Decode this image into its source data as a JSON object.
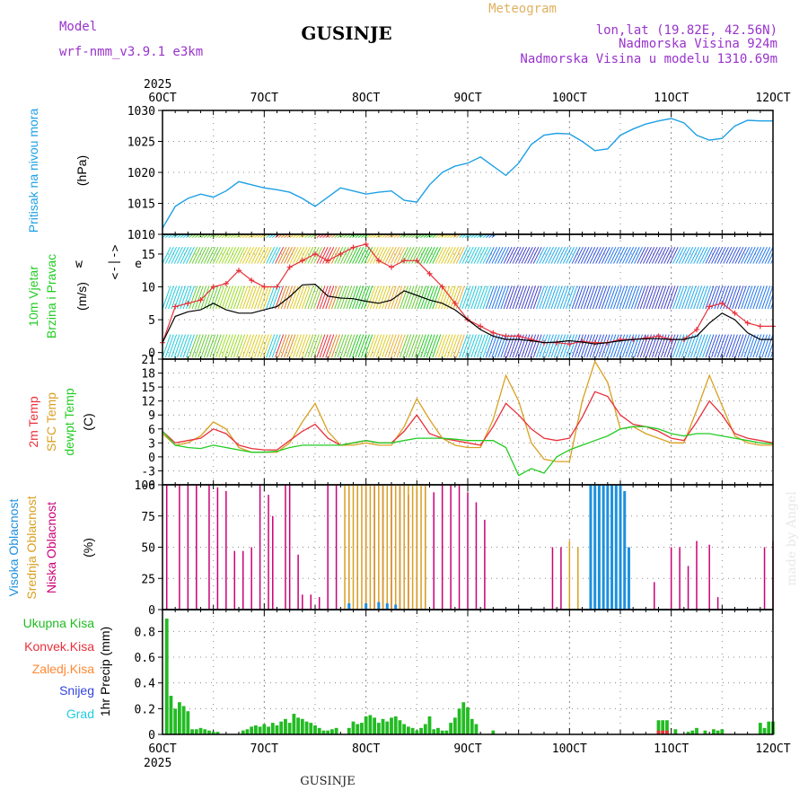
{
  "header": {
    "model_label": "Model",
    "model_name": "wrf-nmm_v3.9.1 e3km",
    "title": "GUSINJE",
    "subtitle": "Meteogram",
    "lonlat": "lon,lat (19.82E, 42.56N)",
    "elevation": "Nadmorska Visina 924m",
    "model_elevation": "Nadmorska Visina u modelu 1310.69m",
    "credit": "made by Angel",
    "footer": "GUSINJE"
  },
  "colors": {
    "pressure": "#1ea0e6",
    "wind_label": "#22cc22",
    "wind_speed": "#000000",
    "gust": "#e8303a",
    "t2m": "#e8303a",
    "sfc": "#d8a020",
    "dewpt": "#22cc22",
    "high_cloud": "#1e90dd",
    "mid_cloud": "#d8a020",
    "low_cloud": "#cc0077",
    "model": "#9933cc",
    "grid": "#888888"
  },
  "time_axis": {
    "year": "2025",
    "labels": [
      "6OCT",
      "7OCT",
      "8OCT",
      "9OCT",
      "10OCT",
      "11OCT",
      "12OCT"
    ]
  },
  "panels": {
    "pressure": {
      "ylabel": "Pritisak na nivou mora",
      "unit": "(hPa)",
      "yticks": [
        "1010",
        "1015",
        "1020",
        "1025",
        "1030"
      ]
    },
    "wind": {
      "ylabel1": "10m Vjetar",
      "ylabel2": "Brzina i Pravac",
      "unit": "(m/s)",
      "yticks": [
        "0",
        "5",
        "10",
        "15"
      ],
      "compass": [
        "w",
        "<-",
        "|",
        "->",
        "e"
      ]
    },
    "temp": {
      "ylabel1": "2m Temp",
      "ylabel2": "SFC Temp",
      "ylabel3": "dewpt Temp",
      "unit": "(C)",
      "yticks": [
        "-6",
        "-3",
        "0",
        "3",
        "6",
        "9",
        "12",
        "15",
        "18",
        "21"
      ]
    },
    "cloud": {
      "ylabel1": "Visoka Oblacnost",
      "ylabel2": "Srednja Oblacnost",
      "ylabel3": "Niska Oblacnost",
      "unit": "(%)",
      "yticks": [
        "0",
        "25",
        "50",
        "75",
        "100"
      ]
    },
    "precip": {
      "legend": [
        "Ukupna Kisa",
        "Konvek.Kisa",
        "Zaledj.Kisa",
        "Snijeg",
        "Grad"
      ],
      "unit": "1hr Precip (mm)",
      "yticks": [
        "0",
        "0.2",
        "0.4",
        "0.6",
        "0.8"
      ]
    }
  },
  "chart_data": [
    {
      "type": "line",
      "title": "Pritisak na nivou mora",
      "ylabel": "hPa",
      "ylim": [
        1010,
        1030
      ],
      "x_hours": [
        0,
        3,
        6,
        9,
        12,
        15,
        18,
        21,
        24,
        27,
        30,
        33,
        36,
        39,
        42,
        45,
        48,
        51,
        54,
        57,
        60,
        63,
        66,
        69,
        72,
        75,
        78,
        81,
        84,
        87,
        90,
        93,
        96,
        99,
        102,
        105,
        108,
        111,
        114,
        117,
        120,
        123,
        126,
        129,
        132,
        135,
        138,
        141,
        144
      ],
      "values": [
        1011,
        1014.5,
        1015.8,
        1016.5,
        1016,
        1017,
        1018.5,
        1018,
        1017.5,
        1017.2,
        1016.8,
        1015.8,
        1014.5,
        1016,
        1017.5,
        1017,
        1016.5,
        1016.8,
        1017,
        1015.5,
        1015.2,
        1018,
        1020,
        1021,
        1021.5,
        1022.5,
        1021,
        1019.5,
        1021.5,
        1024.5,
        1026,
        1026.3,
        1026.2,
        1025,
        1023.5,
        1023.8,
        1026,
        1027,
        1027.8,
        1028.3,
        1028.7,
        1028,
        1026,
        1025.2,
        1025.5,
        1027.5,
        1028.4,
        1028.3,
        1028.3
      ]
    },
    {
      "type": "line",
      "title": "10m Vjetar Brzina i Pravac",
      "ylabel": "m/s",
      "ylim": [
        -1,
        18
      ],
      "x_hours": [
        0,
        3,
        6,
        9,
        12,
        15,
        18,
        21,
        24,
        27,
        30,
        33,
        36,
        39,
        42,
        45,
        48,
        51,
        54,
        57,
        60,
        63,
        66,
        69,
        72,
        75,
        78,
        81,
        84,
        87,
        90,
        93,
        96,
        99,
        102,
        105,
        108,
        111,
        114,
        117,
        120,
        123,
        126,
        129,
        132,
        135,
        138,
        141,
        144
      ],
      "series": [
        {
          "name": "wind_speed",
          "values": [
            1.5,
            5.5,
            6.2,
            6.5,
            7.5,
            6.5,
            6,
            6,
            6.5,
            7,
            8.5,
            10.3,
            10.4,
            8.6,
            8.3,
            8.2,
            7.8,
            7.5,
            8,
            9.4,
            8.7,
            8,
            7.5,
            6.5,
            5,
            3.5,
            2.5,
            2,
            2,
            1.8,
            1.5,
            1.6,
            1.8,
            1.6,
            1.3,
            1.5,
            1.8,
            2,
            2.1,
            2.1,
            2,
            2,
            2.5,
            4.5,
            6,
            5,
            3,
            2,
            2
          ]
        },
        {
          "name": "gust",
          "values": [
            1.5,
            7,
            7.5,
            8,
            10,
            10.5,
            12.5,
            11,
            10,
            10,
            13,
            14,
            15,
            14,
            15,
            16,
            16.5,
            14,
            13,
            14,
            14,
            12,
            10,
            7.5,
            5,
            4,
            3,
            2.5,
            2.5,
            2,
            1.5,
            1.5,
            1.3,
            1.7,
            1.5,
            1.5,
            2,
            2,
            2.2,
            2.5,
            2,
            2,
            3.5,
            7,
            7.5,
            6,
            4.5,
            4,
            4
          ]
        }
      ]
    },
    {
      "type": "line",
      "title": "Temperature",
      "ylabel": "C",
      "ylim": [
        -6,
        21
      ],
      "x_hours": [
        0,
        3,
        6,
        9,
        12,
        15,
        18,
        21,
        24,
        27,
        30,
        33,
        36,
        39,
        42,
        45,
        48,
        51,
        54,
        57,
        60,
        63,
        66,
        69,
        72,
        75,
        78,
        81,
        84,
        87,
        90,
        93,
        96,
        99,
        102,
        105,
        108,
        111,
        114,
        117,
        120,
        123,
        126,
        129,
        132,
        135,
        138,
        141,
        144
      ],
      "series": [
        {
          "name": "2m Temp",
          "values": [
            5.5,
            3,
            3.5,
            4,
            6,
            5,
            2.5,
            1.8,
            1.5,
            1.5,
            3.5,
            5.5,
            7,
            4,
            2.5,
            3,
            3.5,
            3,
            3,
            5.5,
            9,
            5,
            4,
            3.5,
            3,
            2.5,
            6.5,
            11.5,
            9,
            6,
            4,
            3.5,
            4,
            8.5,
            14,
            13,
            9,
            7,
            6.5,
            5.5,
            4,
            3.5,
            7.5,
            12,
            9,
            5,
            4,
            3.5,
            3
          ]
        },
        {
          "name": "SFC Temp",
          "values": [
            5,
            2.5,
            3,
            4.5,
            7.5,
            6,
            2,
            1,
            1,
            1,
            3,
            7.5,
            11.5,
            5.5,
            2.5,
            2.5,
            3,
            2.5,
            2.5,
            6.5,
            12.5,
            8,
            4,
            2.5,
            2,
            2,
            8,
            17.5,
            12,
            3,
            -0.5,
            -1,
            -1,
            12,
            20.5,
            16,
            6,
            6.5,
            5,
            4,
            3,
            3,
            10,
            17.5,
            11,
            4.5,
            3,
            2.5,
            2.5
          ]
        },
        {
          "name": "dewpt Temp",
          "values": [
            5.5,
            2.5,
            2,
            1.8,
            2.5,
            2,
            1.5,
            1,
            1,
            1.2,
            2,
            2.5,
            2.5,
            2.5,
            2.5,
            3,
            3.5,
            3,
            3,
            3.5,
            4,
            4,
            4,
            3.8,
            3.5,
            3.5,
            3.5,
            2,
            -4,
            -2.5,
            -3.5,
            0,
            1.5,
            2.5,
            3.5,
            4.5,
            6,
            6.5,
            6.5,
            6,
            5,
            4.5,
            5,
            5,
            4.5,
            4,
            3.5,
            3,
            2.8
          ]
        }
      ]
    },
    {
      "type": "bar",
      "title": "Oblacnost",
      "ylabel": "%",
      "ylim": [
        0,
        100
      ],
      "series": [
        {
          "name": "Niska Oblacnost",
          "x_hours": [
            1,
            4,
            6,
            8,
            11,
            13,
            15,
            17,
            19,
            21,
            23,
            25,
            26,
            29,
            30,
            32,
            33,
            35,
            37,
            39,
            41,
            44,
            46,
            48,
            50,
            52,
            54,
            56,
            58,
            60,
            62,
            64,
            66,
            68,
            70,
            72,
            74,
            76,
            92,
            94,
            116,
            120,
            122,
            124,
            126,
            129,
            131,
            142,
            144
          ],
          "values": [
            100,
            100,
            100,
            100,
            100,
            98,
            95,
            47,
            47,
            50,
            100,
            92,
            75,
            100,
            100,
            44,
            12,
            12,
            10,
            100,
            100,
            100,
            100,
            100,
            100,
            100,
            100,
            100,
            92,
            96,
            100,
            94,
            100,
            100,
            100,
            94,
            86,
            72,
            50,
            50,
            22,
            50,
            50,
            35,
            55,
            52,
            10,
            50,
            55
          ]
        },
        {
          "name": "Srednja Oblacnost",
          "x_hours": [
            43,
            44,
            45,
            46,
            47,
            48,
            49,
            50,
            51,
            52,
            53,
            54,
            55,
            56,
            57,
            58,
            59,
            60,
            61,
            62,
            96,
            98,
            101,
            102,
            103,
            104,
            105,
            106,
            107,
            108
          ],
          "values": [
            100,
            100,
            100,
            100,
            100,
            100,
            100,
            100,
            100,
            100,
            100,
            100,
            100,
            100,
            100,
            100,
            100,
            100,
            100,
            100,
            55,
            50,
            100,
            100,
            100,
            100,
            100,
            100,
            100,
            100
          ]
        },
        {
          "name": "Visoka Oblacnost",
          "x_hours": [
            44,
            48,
            51,
            53,
            55,
            101,
            102,
            103,
            104,
            105,
            106,
            107,
            108,
            109,
            110
          ],
          "values": [
            5,
            5,
            6,
            5,
            4,
            100,
            100,
            100,
            100,
            100,
            100,
            100,
            100,
            95,
            50
          ]
        }
      ]
    },
    {
      "type": "bar",
      "title": "1hr Precip",
      "ylabel": "mm",
      "ylim": [
        0,
        0.97
      ],
      "series": [
        {
          "name": "Ukupna Kisa",
          "x_hours": [
            1,
            2,
            3,
            4,
            5,
            6,
            7,
            8,
            9,
            10,
            11,
            12,
            13,
            19,
            20,
            21,
            22,
            23,
            24,
            25,
            26,
            27,
            28,
            29,
            30,
            31,
            32,
            33,
            34,
            35,
            36,
            37,
            38,
            39,
            40,
            41,
            44,
            45,
            46,
            47,
            48,
            49,
            50,
            51,
            52,
            53,
            54,
            55,
            56,
            57,
            58,
            59,
            60,
            61,
            62,
            63,
            64,
            65,
            66,
            67,
            68,
            69,
            70,
            71,
            72,
            73,
            74,
            78,
            117,
            118,
            119,
            121,
            124,
            125,
            126,
            128,
            130,
            131,
            132,
            141,
            142,
            143,
            144
          ],
          "values": [
            0.9,
            0.3,
            0.2,
            0.25,
            0.22,
            0.18,
            0.04,
            0.04,
            0.05,
            0.04,
            0.03,
            0.02,
            0.02,
            0.03,
            0.04,
            0.06,
            0.07,
            0.06,
            0.08,
            0.06,
            0.09,
            0.07,
            0.1,
            0.12,
            0.09,
            0.16,
            0.13,
            0.12,
            0.1,
            0.09,
            0.07,
            0.05,
            0.03,
            0.03,
            0.04,
            0.05,
            0.05,
            0.1,
            0.08,
            0.09,
            0.14,
            0.15,
            0.13,
            0.09,
            0.12,
            0.1,
            0.13,
            0.14,
            0.11,
            0.08,
            0.06,
            0.05,
            0.03,
            0.05,
            0.08,
            0.14,
            0.04,
            0.05,
            0.03,
            0.03,
            0.09,
            0.13,
            0.2,
            0.25,
            0.21,
            0.12,
            0.08,
            0.03,
            0.11,
            0.11,
            0.11,
            0.04,
            0.02,
            0.03,
            0.05,
            0.03,
            0.04,
            0.03,
            0.04,
            0.09,
            0.05,
            0.1,
            0.1
          ]
        },
        {
          "name": "Konvek.Kisa",
          "x_hours": [
            117,
            118,
            119
          ],
          "values": [
            0.03,
            0.03,
            0.03
          ]
        }
      ]
    }
  ]
}
